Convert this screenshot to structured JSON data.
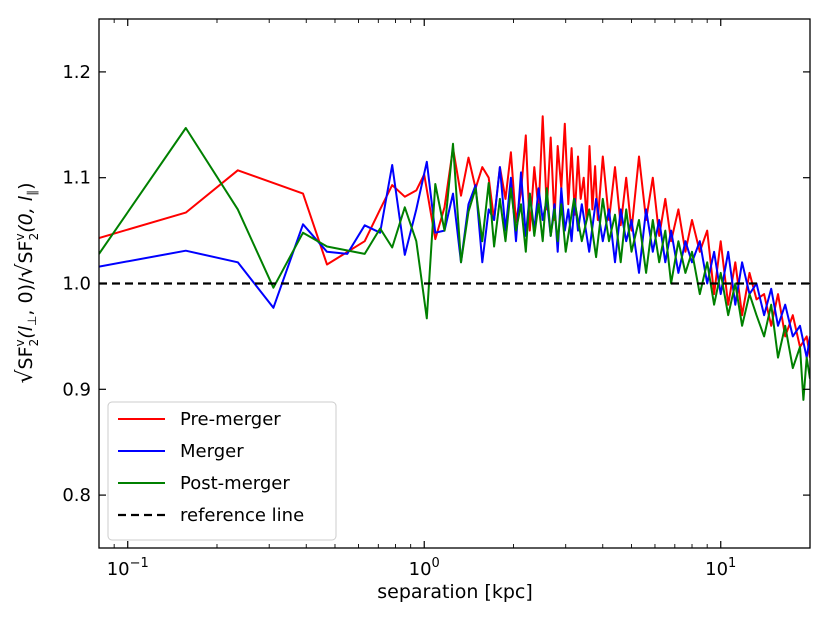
{
  "chart_data": {
    "type": "line",
    "title": "",
    "xlabel": "separation [kpc]",
    "ylabel_parts": {
      "radical": "√",
      "num_base": "SF",
      "num_sup": "v",
      "num_sub": "2",
      "num_args": "(l",
      "num_perp": "⊥",
      "num_rest": ", 0)",
      "slash": "/",
      "den_base": "SF",
      "den_sup": "v",
      "den_sub": "2",
      "den_args": "(0, l",
      "den_par": "∥",
      "den_rest": ")"
    },
    "x_scale": "log",
    "xlim": [
      0.08,
      20
    ],
    "ylim": [
      0.75,
      1.25
    ],
    "x_ticks": [
      {
        "value": 0.1,
        "base": "10",
        "exp": "−1"
      },
      {
        "value": 1,
        "base": "10",
        "exp": "0"
      },
      {
        "value": 10,
        "base": "10",
        "exp": "1"
      }
    ],
    "y_ticks": [
      0.8,
      0.9,
      1.0,
      1.1,
      1.2
    ],
    "y_tick_labels": [
      "0.8",
      "0.9",
      "1.0",
      "1.1",
      "1.2"
    ],
    "grid": false,
    "legend_position": "lower-left",
    "series": [
      {
        "name": "Pre-merger",
        "color": "#ff0000",
        "x": [
          0.08,
          0.157,
          0.235,
          0.39,
          0.47,
          0.63,
          0.71,
          0.78,
          0.86,
          0.94,
          1.0,
          1.09,
          1.17,
          1.25,
          1.33,
          1.41,
          1.49,
          1.57,
          1.65,
          1.72,
          1.8,
          1.88,
          1.96,
          2.04,
          2.12,
          2.2,
          2.27,
          2.35,
          2.43,
          2.51,
          2.59,
          2.67,
          2.75,
          2.82,
          2.9,
          2.98,
          3.06,
          3.14,
          3.22,
          3.3,
          3.37,
          3.45,
          3.53,
          3.61,
          3.69,
          3.77,
          3.85,
          4.0,
          4.2,
          4.4,
          4.6,
          4.8,
          5.0,
          5.3,
          5.6,
          5.9,
          6.2,
          6.5,
          6.8,
          7.2,
          7.6,
          8.0,
          8.5,
          9.0,
          9.5,
          10.0,
          10.6,
          11.2,
          11.8,
          12.5,
          13.2,
          14.0,
          14.8,
          15.6,
          16.5,
          17.5,
          18.5,
          19.5,
          20.0
        ],
        "y": [
          1.043,
          1.067,
          1.107,
          1.085,
          1.018,
          1.04,
          1.07,
          1.093,
          1.082,
          1.088,
          1.103,
          1.042,
          1.072,
          1.128,
          1.083,
          1.119,
          1.09,
          1.11,
          1.1,
          1.06,
          1.11,
          1.08,
          1.124,
          1.058,
          1.087,
          1.14,
          1.05,
          1.11,
          1.069,
          1.158,
          1.07,
          1.138,
          1.06,
          1.13,
          1.09,
          1.151,
          1.075,
          1.128,
          1.065,
          1.12,
          1.08,
          1.1,
          1.06,
          1.13,
          1.07,
          1.111,
          1.06,
          1.12,
          1.06,
          1.11,
          1.055,
          1.1,
          1.05,
          1.12,
          1.06,
          1.1,
          1.045,
          1.08,
          1.04,
          1.07,
          1.03,
          1.06,
          1.03,
          1.05,
          0.99,
          1.04,
          0.98,
          1.02,
          0.97,
          1.01,
          0.985,
          0.99,
          0.96,
          0.99,
          0.95,
          0.97,
          0.94,
          0.95,
          0.93
        ]
      },
      {
        "name": "Merger",
        "color": "#0000ff",
        "x": [
          0.08,
          0.157,
          0.235,
          0.31,
          0.39,
          0.47,
          0.55,
          0.63,
          0.71,
          0.78,
          0.86,
          0.94,
          1.02,
          1.09,
          1.17,
          1.25,
          1.33,
          1.41,
          1.49,
          1.57,
          1.65,
          1.72,
          1.8,
          1.88,
          1.96,
          2.04,
          2.12,
          2.2,
          2.27,
          2.35,
          2.43,
          2.51,
          2.59,
          2.67,
          2.75,
          2.82,
          2.9,
          2.98,
          3.06,
          3.14,
          3.22,
          3.3,
          3.4,
          3.6,
          3.8,
          4.0,
          4.2,
          4.4,
          4.6,
          4.8,
          5.0,
          5.3,
          5.6,
          5.9,
          6.2,
          6.5,
          6.8,
          7.2,
          7.6,
          8.0,
          8.5,
          9.0,
          9.5,
          10.0,
          10.6,
          11.2,
          11.8,
          12.5,
          13.2,
          14.0,
          14.8,
          15.6,
          16.5,
          17.5,
          18.5,
          19.5,
          20.0
        ],
        "y": [
          1.016,
          1.031,
          1.02,
          0.977,
          1.056,
          1.03,
          1.028,
          1.055,
          1.048,
          1.112,
          1.027,
          1.07,
          1.115,
          1.048,
          1.05,
          1.085,
          1.02,
          1.075,
          1.093,
          1.02,
          1.07,
          1.06,
          1.11,
          1.05,
          1.1,
          1.04,
          1.105,
          1.045,
          1.085,
          1.05,
          1.09,
          1.06,
          1.08,
          1.045,
          1.075,
          1.03,
          1.09,
          1.05,
          1.07,
          1.04,
          1.08,
          1.05,
          1.075,
          1.03,
          1.08,
          1.04,
          1.07,
          1.02,
          1.07,
          1.04,
          1.06,
          1.01,
          1.07,
          1.03,
          1.06,
          1.02,
          1.05,
          1.01,
          1.04,
          1.02,
          1.04,
          1.0,
          1.03,
          0.99,
          1.03,
          0.98,
          1.02,
          0.99,
          1.0,
          0.97,
          0.995,
          0.96,
          0.98,
          0.95,
          0.96,
          0.93,
          0.95
        ]
      },
      {
        "name": "Post-merger",
        "color": "#008000",
        "x": [
          0.08,
          0.157,
          0.235,
          0.31,
          0.39,
          0.47,
          0.63,
          0.71,
          0.78,
          0.86,
          0.94,
          1.02,
          1.09,
          1.17,
          1.25,
          1.33,
          1.41,
          1.49,
          1.57,
          1.65,
          1.72,
          1.8,
          1.88,
          1.96,
          2.04,
          2.12,
          2.2,
          2.27,
          2.35,
          2.43,
          2.51,
          2.59,
          2.67,
          2.75,
          2.82,
          2.9,
          3.0,
          3.2,
          3.4,
          3.6,
          3.8,
          4.0,
          4.2,
          4.4,
          4.6,
          4.8,
          5.0,
          5.3,
          5.6,
          5.9,
          6.2,
          6.5,
          6.8,
          7.2,
          7.6,
          8.0,
          8.5,
          9.0,
          9.5,
          10.0,
          10.6,
          11.2,
          11.8,
          12.5,
          13.2,
          14.0,
          14.8,
          15.6,
          16.5,
          17.5,
          18.5,
          19.0,
          19.5,
          20.0
        ],
        "y": [
          1.028,
          1.147,
          1.07,
          0.996,
          1.048,
          1.035,
          1.028,
          1.052,
          1.034,
          1.072,
          1.04,
          0.967,
          1.094,
          1.05,
          1.132,
          1.02,
          1.068,
          1.09,
          1.04,
          1.095,
          1.035,
          1.08,
          1.04,
          1.09,
          1.05,
          1.075,
          1.03,
          1.085,
          1.045,
          1.075,
          1.04,
          1.09,
          1.045,
          1.07,
          1.04,
          1.075,
          1.03,
          1.08,
          1.04,
          1.07,
          1.025,
          1.08,
          1.04,
          1.065,
          1.02,
          1.07,
          1.03,
          1.06,
          1.01,
          1.06,
          1.02,
          1.05,
          1.0,
          1.04,
          1.01,
          1.03,
          0.99,
          1.02,
          0.98,
          1.01,
          0.97,
          1.0,
          0.96,
          0.99,
          0.97,
          0.95,
          0.98,
          0.93,
          0.96,
          0.92,
          0.94,
          0.89,
          0.93,
          0.91
        ]
      },
      {
        "name": "reference line",
        "color": "#000000",
        "dashed": true,
        "x": [
          0.08,
          20.0
        ],
        "y": [
          1.0,
          1.0
        ]
      }
    ]
  }
}
